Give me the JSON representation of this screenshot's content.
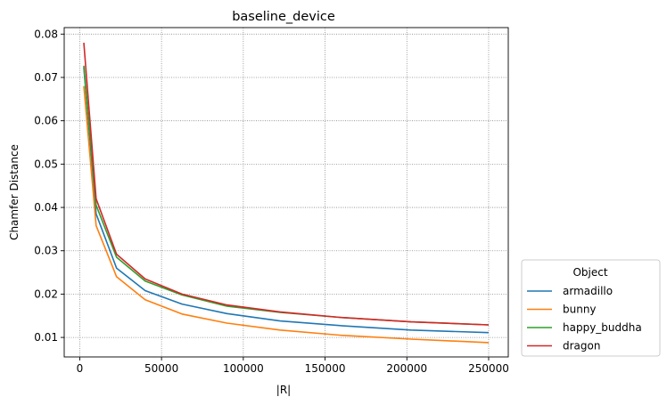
{
  "chart_data": {
    "type": "line",
    "title": "baseline_device",
    "xlabel": "|R|",
    "ylabel": "Chamfer Distance",
    "xlim": [
      -9500,
      262000
    ],
    "ylim": [
      0.0055,
      0.0815
    ],
    "x_ticks": [
      0,
      50000,
      100000,
      150000,
      200000,
      250000
    ],
    "x_tick_labels": [
      "0",
      "50000",
      "100000",
      "150000",
      "200000",
      "250000"
    ],
    "y_ticks": [
      0.01,
      0.02,
      0.03,
      0.04,
      0.05,
      0.06,
      0.07,
      0.08
    ],
    "y_tick_labels": [
      "0.01",
      "0.02",
      "0.03",
      "0.04",
      "0.05",
      "0.06",
      "0.07",
      "0.08"
    ],
    "grid": true,
    "legend": {
      "title": "Object",
      "placement": "outside-right-bottom"
    },
    "x": [
      2500,
      10000,
      22500,
      40000,
      62500,
      90000,
      122500,
      160000,
      202500,
      250000
    ],
    "series": [
      {
        "name": "armadillo",
        "color": "#1f77b4",
        "values": [
          0.0723,
          0.0385,
          0.026,
          0.0208,
          0.0177,
          0.0155,
          0.0138,
          0.0127,
          0.0117,
          0.0111
        ]
      },
      {
        "name": "bunny",
        "color": "#ff7f0e",
        "values": [
          0.068,
          0.0358,
          0.024,
          0.0187,
          0.0154,
          0.0133,
          0.0117,
          0.0105,
          0.0096,
          0.0088
        ]
      },
      {
        "name": "happy_buddha",
        "color": "#2ca02c",
        "values": [
          0.0727,
          0.0405,
          0.0285,
          0.023,
          0.0198,
          0.0172,
          0.0158,
          0.0146,
          0.0136,
          0.0129
        ]
      },
      {
        "name": "dragon",
        "color": "#d62728",
        "values": [
          0.078,
          0.042,
          0.0292,
          0.0235,
          0.02,
          0.0175,
          0.0159,
          0.0146,
          0.0136,
          0.0129
        ]
      }
    ]
  }
}
